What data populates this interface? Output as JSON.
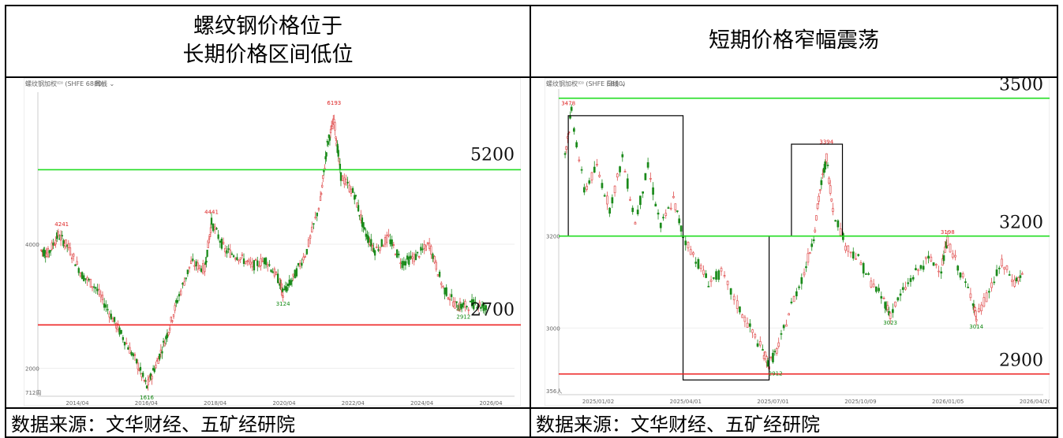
{
  "header": {
    "left_title_line1": "螺纹钢价格位于",
    "left_title_line2": "长期价格区间低位",
    "right_title": "短期价格窄幅震荡"
  },
  "footer": {
    "left_source": "数据来源：文华财经、五矿经研院",
    "right_source": "数据来源：文华财经、五矿经研院"
  },
  "colors": {
    "resistance": "#22dd22",
    "support": "#ee2222",
    "up_candle": "#e05050",
    "down_candle": "#1a8a1a",
    "box": "#000000"
  },
  "chart_data": [
    {
      "type": "line",
      "instrument_label": "螺纹钢加权⁽ᴰ⁾ (SHFE 6880)",
      "period_label": "周线 ⌄",
      "corner_label": "712周",
      "x_ticks": [
        "2014/04",
        "2016/04",
        "2018/04",
        "2020/04",
        "2022/04",
        "2024/04",
        "2026/04"
      ],
      "y_ticks": [
        2000,
        4000
      ],
      "ylim": [
        1550,
        6450
      ],
      "xlim": [
        2012.7,
        2026.7
      ],
      "annotations": [
        {
          "x": 2013.4,
          "y": 4241,
          "text": "4241",
          "color": "red"
        },
        {
          "x": 2015.9,
          "y": 1616,
          "text": "1616",
          "color": "green"
        },
        {
          "x": 2017.8,
          "y": 4441,
          "text": "4441",
          "color": "red"
        },
        {
          "x": 2021.4,
          "y": 6193,
          "text": "6193",
          "color": "red"
        },
        {
          "x": 2019.9,
          "y": 3124,
          "text": "3124",
          "color": "green"
        },
        {
          "x": 2025.2,
          "y": 2912,
          "text": "2912",
          "color": "green"
        }
      ],
      "levels": [
        {
          "value": 5200,
          "label": "5200",
          "kind": "resistance"
        },
        {
          "value": 2700,
          "label": "2700",
          "kind": "support"
        }
      ],
      "series": [
        {
          "x": [
            2012.8,
            2013.0,
            2013.3,
            2013.6,
            2014.0,
            2014.4,
            2014.8,
            2015.2,
            2015.6,
            2015.9,
            2016.2,
            2016.5,
            2016.8,
            2017.2,
            2017.6,
            2017.8,
            2018.2,
            2018.6,
            2019.0,
            2019.4,
            2019.8,
            2019.9,
            2020.2,
            2020.6,
            2021.0,
            2021.2,
            2021.4,
            2021.6,
            2022.0,
            2022.3,
            2022.6,
            2023.0,
            2023.4,
            2023.8,
            2024.2,
            2024.6,
            2025.0,
            2025.2,
            2025.6,
            2025.9
          ],
          "y": [
            3900,
            3850,
            4150,
            3950,
            3500,
            3300,
            2900,
            2500,
            2100,
            1700,
            2100,
            2550,
            3100,
            3700,
            3600,
            4350,
            3900,
            3800,
            3650,
            3750,
            3400,
            3200,
            3450,
            3900,
            4700,
            5600,
            6000,
            5100,
            4800,
            4200,
            3900,
            4100,
            3700,
            3800,
            4000,
            3300,
            3000,
            3000,
            3050,
            2950
          ]
        }
      ]
    },
    {
      "type": "line",
      "instrument_label": "螺纹钢加权⁽ᴰ⁾ (SHFE 6880)",
      "period_label": "日线 ⌄",
      "corner_label": "356人",
      "x_ticks": [
        "2025/01/02",
        "2025/04/01",
        "2025/07/01",
        "2025/10/09",
        "2026/01/05",
        "2026/04/20"
      ],
      "y_ticks": [
        3000,
        3200
      ],
      "ylim": [
        2855,
        3520
      ],
      "xlim": [
        2024.84,
        2026.36
      ],
      "annotations": [
        {
          "x": 2024.87,
          "y": 3478,
          "text": "3478",
          "color": "red"
        },
        {
          "x": 2025.52,
          "y": 2912,
          "text": "2912",
          "color": "green"
        },
        {
          "x": 2025.68,
          "y": 3394,
          "text": "3394",
          "color": "red"
        },
        {
          "x": 2025.88,
          "y": 3023,
          "text": "3023",
          "color": "green"
        },
        {
          "x": 2026.06,
          "y": 3198,
          "text": "3198",
          "color": "red"
        },
        {
          "x": 2026.15,
          "y": 3014,
          "text": "3014",
          "color": "green"
        }
      ],
      "levels": [
        {
          "value": 3500,
          "label": "3500",
          "kind": "resistance"
        },
        {
          "value": 3200,
          "label": "3200",
          "kind": "resistance"
        },
        {
          "value": 2900,
          "label": "2900",
          "kind": "support"
        }
      ],
      "boxes": [
        {
          "x0": 2024.87,
          "x1": 2025.23,
          "y0": 3200,
          "y1": 3462
        },
        {
          "x0": 2025.23,
          "x1": 2025.5,
          "y0": 2887,
          "y1": 3200
        },
        {
          "x0": 2025.57,
          "x1": 2025.73,
          "y0": 3200,
          "y1": 3400
        }
      ],
      "series": [
        {
          "x": [
            2024.86,
            2024.88,
            2024.92,
            2024.96,
            2025.0,
            2025.04,
            2025.08,
            2025.12,
            2025.16,
            2025.2,
            2025.23,
            2025.27,
            2025.31,
            2025.35,
            2025.4,
            2025.44,
            2025.48,
            2025.5,
            2025.53,
            2025.57,
            2025.61,
            2025.64,
            2025.66,
            2025.68,
            2025.7,
            2025.74,
            2025.78,
            2025.82,
            2025.86,
            2025.88,
            2025.92,
            2025.96,
            2026.0,
            2026.04,
            2026.06,
            2026.1,
            2026.14,
            2026.15,
            2026.19,
            2026.23,
            2026.27,
            2026.3
          ],
          "y": [
            3380,
            3470,
            3300,
            3350,
            3260,
            3370,
            3230,
            3350,
            3220,
            3280,
            3200,
            3150,
            3100,
            3120,
            3050,
            3000,
            2950,
            2920,
            2960,
            3050,
            3120,
            3200,
            3300,
            3370,
            3260,
            3180,
            3150,
            3100,
            3060,
            3030,
            3080,
            3120,
            3150,
            3130,
            3190,
            3120,
            3060,
            3020,
            3080,
            3140,
            3100,
            3120
          ]
        }
      ]
    }
  ]
}
